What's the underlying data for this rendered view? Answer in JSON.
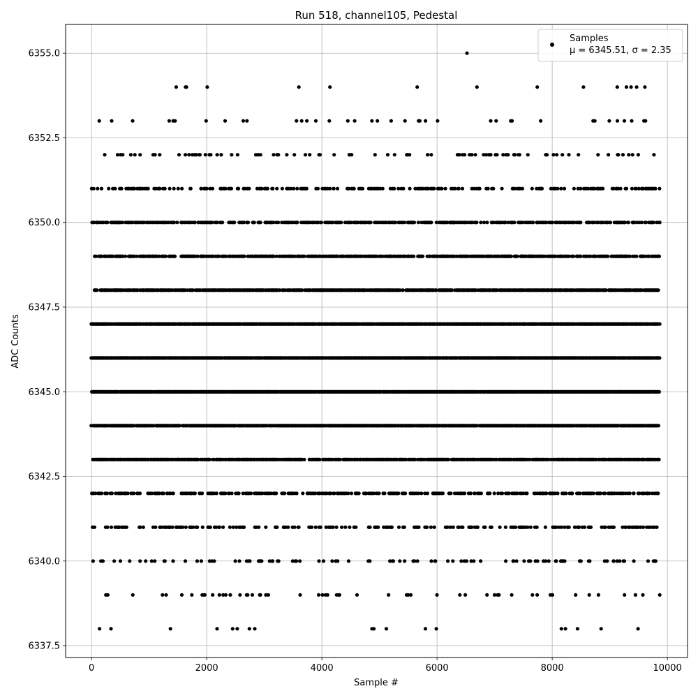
{
  "chart_data": {
    "type": "scatter",
    "title": "Run 518, channel105, Pedestal",
    "xlabel": "Sample #",
    "ylabel": "ADC Counts",
    "xlim": [
      -450,
      10350
    ],
    "ylim": [
      6337.15,
      6355.85
    ],
    "xticks": [
      0,
      2000,
      4000,
      6000,
      8000,
      10000
    ],
    "xtick_labels": [
      "0",
      "2000",
      "4000",
      "6000",
      "8000",
      "10000"
    ],
    "yticks": [
      6337.5,
      6340.0,
      6342.5,
      6345.0,
      6347.5,
      6350.0,
      6352.5,
      6355.0
    ],
    "ytick_labels": [
      "6337.5",
      "6340.0",
      "6342.5",
      "6345.0",
      "6347.5",
      "6350.0",
      "6352.5",
      "6355.0"
    ],
    "grid": true,
    "marker_color": "#000000",
    "legend": {
      "position": "top-right",
      "label": "Samples",
      "stats_text": "μ = 6345.51, σ = 2.35"
    },
    "n_samples": 9870,
    "mean": 6345.51,
    "sigma": 2.35,
    "level_fill_fractions": {
      "6338": 0.01,
      "6339": 0.05,
      "6340": 0.1,
      "6341": 0.25,
      "6342": 0.42,
      "6343": 0.72,
      "6344": 0.9,
      "6345": 0.97,
      "6346": 0.95,
      "6347": 0.93,
      "6348": 0.78,
      "6349": 0.6,
      "6350": 0.45,
      "6351": 0.27,
      "6352": 0.1,
      "6353": 0.03,
      "6354": 0.01
    },
    "isolated_points": [
      {
        "x": 6520,
        "y": 6355
      },
      {
        "x": 1470,
        "y": 6354
      },
      {
        "x": 2010,
        "y": 6354
      },
      {
        "x": 4140,
        "y": 6354
      },
      {
        "x": 7740,
        "y": 6354
      },
      {
        "x": 9370,
        "y": 6354
      },
      {
        "x": 9610,
        "y": 6354
      },
      {
        "x": 350,
        "y": 6353
      },
      {
        "x": 1450,
        "y": 6353
      },
      {
        "x": 1990,
        "y": 6353
      },
      {
        "x": 2320,
        "y": 6353
      },
      {
        "x": 3560,
        "y": 6353
      },
      {
        "x": 4130,
        "y": 6353
      },
      {
        "x": 4450,
        "y": 6353
      },
      {
        "x": 5680,
        "y": 6353
      },
      {
        "x": 6010,
        "y": 6353
      },
      {
        "x": 7280,
        "y": 6353
      },
      {
        "x": 7800,
        "y": 6353
      },
      {
        "x": 8710,
        "y": 6353
      },
      {
        "x": 8740,
        "y": 6353
      },
      {
        "x": 9380,
        "y": 6353
      },
      {
        "x": 9620,
        "y": 6353
      },
      {
        "x": 1370,
        "y": 6337.999
      },
      {
        "x": 2180,
        "y": 6337.999
      },
      {
        "x": 2450,
        "y": 6337.999
      },
      {
        "x": 2530,
        "y": 6337.999
      },
      {
        "x": 4870,
        "y": 6337.999
      },
      {
        "x": 8160,
        "y": 6337.999
      },
      {
        "x": 8230,
        "y": 6337.999
      },
      {
        "x": 8440,
        "y": 6337.999
      },
      {
        "x": 9490,
        "y": 6337.999
      }
    ]
  }
}
